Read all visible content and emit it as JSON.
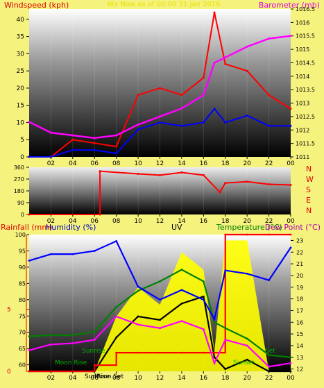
{
  "panel1": {
    "title_left": "Windspeed (kph)",
    "title_center": "Wx Now as of 00:00 31 Jan 2016",
    "title_right": "Barometer (mb)",
    "left_ticks": [
      "0",
      "5",
      "10",
      "15",
      "20",
      "25",
      "30",
      "35",
      "40"
    ],
    "right_ticks": [
      "1011",
      "1011.5",
      "1012",
      "1012.5",
      "1013",
      "1013.5",
      "1014",
      "1014.5",
      "1015",
      "1015.5",
      "1016",
      "1016.5"
    ],
    "x_ticks": [
      "02",
      "04",
      "06",
      "08",
      "10",
      "12",
      "14",
      "16",
      "18",
      "20",
      "22",
      "00"
    ],
    "colors": {
      "gust": "#ff0000",
      "avg": "#0000ff",
      "baro": "#ff00ff"
    }
  },
  "panel2": {
    "left_ticks": [
      "0",
      "90",
      "180",
      "270",
      "360"
    ],
    "compass": [
      "N",
      "W",
      "S",
      "E",
      "N"
    ],
    "x_ticks": [
      "02",
      "04",
      "06",
      "08",
      "10",
      "12",
      "14",
      "16",
      "18",
      "20",
      "22",
      "00"
    ],
    "color": "#ff0000"
  },
  "panel3": {
    "title_rain": "Rainfall (mm)",
    "title_hum": "Humidity (%)",
    "title_uv": "UV",
    "title_temp": "Temperature (°C)",
    "title_dew": "Dew Point (°C)",
    "rain_ticks": [
      "0",
      "5"
    ],
    "hum_ticks": [
      "60",
      "65",
      "70",
      "75",
      "80",
      "85",
      "90",
      "95",
      "100"
    ],
    "temp_ticks": [
      "12",
      "13",
      "14",
      "15",
      "16",
      "17",
      "18",
      "19",
      "20",
      "21",
      "22",
      "23"
    ],
    "x_ticks": [
      "02",
      "04",
      "06",
      "08",
      "10",
      "12",
      "14",
      "16",
      "18",
      "20",
      "22",
      "00"
    ],
    "annotations": {
      "moon_rise": "Moon Rise",
      "sunrise": "SunRise",
      "sunrise_label": "Sunrise",
      "sunset_label": "Sunset",
      "moon_set": "Moon Set",
      "set": "Set"
    },
    "colors": {
      "humidity": "#0000ff",
      "temperature": "#008000",
      "dewpoint": "#ff00ff",
      "uv": "#ffff00",
      "solar": "#000000",
      "rain": "#ff0000"
    }
  },
  "chart_data": [
    {
      "type": "line",
      "title": "Wx Now as of 00:00 31 Jan 2016",
      "ylabel": "Windspeed (kph)",
      "y2label": "Barometer (mb)",
      "x": [
        0,
        2,
        4,
        6,
        8,
        10,
        12,
        14,
        16,
        17,
        18,
        20,
        22,
        24
      ],
      "ylim": [
        0,
        43
      ],
      "y2lim": [
        1011,
        1016.5
      ],
      "series": [
        {
          "name": "Gust",
          "axis": "left",
          "values": [
            0,
            0,
            5,
            4,
            3,
            18,
            20,
            18,
            23,
            42,
            27,
            25,
            18,
            14
          ]
        },
        {
          "name": "Average",
          "axis": "left",
          "values": [
            0,
            0,
            2,
            2,
            1,
            8,
            10,
            9,
            10,
            14,
            10,
            12,
            9,
            9
          ]
        },
        {
          "name": "Barometer",
          "axis": "right",
          "values": [
            1012.3,
            1011.9,
            1011.8,
            1011.7,
            1011.8,
            1012.2,
            1012.5,
            1012.8,
            1013.3,
            1014.5,
            1014.7,
            1015.1,
            1015.4,
            1015.5
          ]
        }
      ]
    },
    {
      "type": "line",
      "ylabel": "Wind Direction",
      "x": [
        0,
        6.5,
        6.5,
        10,
        12,
        14,
        16,
        17.5,
        18,
        20,
        22,
        24
      ],
      "ylim": [
        0,
        360
      ],
      "series": [
        {
          "name": "Direction",
          "values": [
            0,
            0,
            330,
            310,
            300,
            320,
            300,
            170,
            240,
            250,
            230,
            225
          ]
        }
      ]
    },
    {
      "type": "line",
      "x": [
        0,
        2,
        4,
        6,
        8,
        10,
        12,
        14,
        16,
        17,
        18,
        20,
        22,
        24
      ],
      "series": [
        {
          "name": "Humidity",
          "axis": "humidity",
          "ylim": [
            58,
            100
          ],
          "values": [
            92,
            94,
            94,
            95,
            98,
            84,
            80,
            83,
            80,
            74,
            89,
            88,
            86,
            96
          ]
        },
        {
          "name": "Temperature",
          "axis": "temperature",
          "ylim": [
            11.8,
            23.5
          ],
          "values": [
            14.8,
            14.9,
            14.9,
            15.2,
            17.3,
            18.7,
            19.5,
            20.5,
            19.5,
            16,
            15.5,
            14.6,
            13.2,
            13.0
          ]
        },
        {
          "name": "Dew Point",
          "axis": "temperature",
          "ylim": [
            11.8,
            23.5
          ],
          "values": [
            13.6,
            14.1,
            14.2,
            14.5,
            16.5,
            15.8,
            15.5,
            16.1,
            15.4,
            12.5,
            14.5,
            14.0,
            12.2,
            12.5
          ]
        },
        {
          "name": "UV",
          "axis": "temperature",
          "ylim": [
            11.8,
            23.5
          ],
          "values": [
            11.8,
            11.8,
            11.8,
            11.8,
            16.5,
            19.0,
            17.5,
            22.0,
            20.5,
            13.5,
            23,
            23,
            11.8,
            11.8
          ]
        },
        {
          "name": "Solar",
          "axis": "temperature",
          "ylim": [
            11.8,
            23.5
          ],
          "values": [
            11.8,
            11.8,
            11.8,
            11.8,
            14.7,
            16.5,
            16.2,
            17.6,
            18.2,
            13,
            12,
            12.8,
            11.8,
            11.8
          ]
        },
        {
          "name": "Rainfall",
          "axis": "rain",
          "ylim": [
            0,
            11
          ],
          "values": [
            0,
            0,
            0,
            0.5,
            1.5,
            1.5,
            1.5,
            1.5,
            1.5,
            1.5,
            11,
            11,
            11,
            11
          ]
        }
      ]
    }
  ]
}
